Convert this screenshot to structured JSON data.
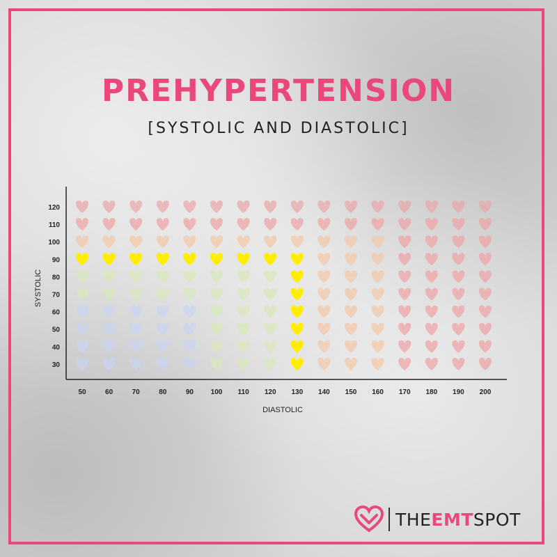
{
  "header": {
    "title": "PREHYPERTENSION",
    "subtitle": "[SYSTOLIC AND DIASTOLIC]"
  },
  "logo": {
    "part1": "THE",
    "part2": "EMT",
    "part3": "SPOT",
    "accent_color": "#e8497a",
    "icon": "heart-outline-icon"
  },
  "chart_data": {
    "type": "scatter",
    "marker": "heart",
    "xlabel": "DIASTOLIC",
    "ylabel": "SYSTOLIC",
    "x_ticks": [
      50,
      60,
      70,
      80,
      90,
      100,
      110,
      120,
      130,
      140,
      150,
      160,
      170,
      180,
      190,
      200
    ],
    "y_ticks": [
      30,
      40,
      50,
      60,
      70,
      80,
      90,
      100,
      110,
      120
    ],
    "highlight_color": "#ffee00",
    "highlighted_points": [
      [
        50,
        90
      ],
      [
        60,
        90
      ],
      [
        70,
        90
      ],
      [
        80,
        90
      ],
      [
        90,
        90
      ],
      [
        100,
        90
      ],
      [
        110,
        90
      ],
      [
        120,
        90
      ],
      [
        130,
        90
      ],
      [
        130,
        80
      ],
      [
        130,
        70
      ],
      [
        130,
        60
      ],
      [
        130,
        50
      ],
      [
        130,
        40
      ],
      [
        130,
        30
      ]
    ],
    "faded_color_rows": [
      {
        "y": 120,
        "colors": [
          "#e8a8a8",
          "#e8a8a8",
          "#e8a8a8",
          "#e8a8a8",
          "#e8a8a8",
          "#e8a8a8",
          "#e8a8a8",
          "#e8a8a8",
          "#e8a8a8",
          "#e8a8a8",
          "#e8a8a8",
          "#e8a8a8",
          "#e8a8a8",
          "#e8a8a8",
          "#e8a8a8",
          "#e8a8a8"
        ]
      },
      {
        "y": 110,
        "colors": [
          "#f0a4a4",
          "#f0a4a4",
          "#f0a4a4",
          "#f0a4a4",
          "#f0a4a4",
          "#f0a4a4",
          "#f0a4a4",
          "#f0a4a4",
          "#f0a4a4",
          "#f0a4a4",
          "#f0a4a4",
          "#f0a4a4",
          "#f0a4a4",
          "#f0a4a4",
          "#f0a4a4",
          "#f0a4a4"
        ]
      },
      {
        "y": 100,
        "colors": [
          "#f2c8a8",
          "#f2c8a8",
          "#f2c8a8",
          "#f2c8a8",
          "#f2c8a8",
          "#f2c8a8",
          "#f2c8a8",
          "#f2c8a8",
          "#f2c8a8",
          "#f2c8a8",
          "#f2c8a8",
          "#f2c8a8",
          "#f0a4a4",
          "#f0a4a4",
          "#f0a4a4",
          "#f0a4a4"
        ]
      },
      {
        "y": 90,
        "colors": [
          "#ffee00",
          "#ffee00",
          "#ffee00",
          "#ffee00",
          "#ffee00",
          "#ffee00",
          "#ffee00",
          "#ffee00",
          "#ffee00",
          "#f2c8a8",
          "#f2c8a8",
          "#f2c8a8",
          "#f0a4a4",
          "#f0a4a4",
          "#f0a4a4",
          "#f0a4a4"
        ]
      },
      {
        "y": 80,
        "colors": [
          "#d8e8b8",
          "#d8e8b8",
          "#d8e8b8",
          "#d8e8b8",
          "#d8e8b8",
          "#d8e8b8",
          "#d8e8b8",
          "#d8e8b8",
          "#ffee00",
          "#f2c8a8",
          "#f2c8a8",
          "#f2c8a8",
          "#f0a4a4",
          "#f0a4a4",
          "#f0a4a4",
          "#f0a4a4"
        ]
      },
      {
        "y": 70,
        "colors": [
          "#d8e8b8",
          "#d8e8b8",
          "#d8e8b8",
          "#d8e8b8",
          "#d8e8b8",
          "#d8e8b8",
          "#d8e8b8",
          "#d8e8b8",
          "#ffee00",
          "#f2c8a8",
          "#f2c8a8",
          "#f2c8a8",
          "#f0a4a4",
          "#f0a4a4",
          "#f0a4a4",
          "#f0a4a4"
        ]
      },
      {
        "y": 60,
        "colors": [
          "#c8d4f0",
          "#c8d4f0",
          "#c8d4f0",
          "#c8d4f0",
          "#c8d4f0",
          "#d8e8b8",
          "#d8e8b8",
          "#d8e8b8",
          "#ffee00",
          "#f2c8a8",
          "#f2c8a8",
          "#f2c8a8",
          "#f0a4a4",
          "#f0a4a4",
          "#f0a4a4",
          "#f0a4a4"
        ]
      },
      {
        "y": 50,
        "colors": [
          "#c8d4f0",
          "#c8d4f0",
          "#c8d4f0",
          "#c8d4f0",
          "#c8d4f0",
          "#d8e8b8",
          "#d8e8b8",
          "#d8e8b8",
          "#ffee00",
          "#f2c8a8",
          "#f2c8a8",
          "#f2c8a8",
          "#f0a4a4",
          "#f0a4a4",
          "#f0a4a4",
          "#f0a4a4"
        ]
      },
      {
        "y": 40,
        "colors": [
          "#c8d4f0",
          "#c8d4f0",
          "#c8d4f0",
          "#c8d4f0",
          "#c8d4f0",
          "#d8e8b8",
          "#d8e8b8",
          "#d8e8b8",
          "#ffee00",
          "#f2c8a8",
          "#f2c8a8",
          "#f2c8a8",
          "#f0a4a4",
          "#f0a4a4",
          "#f0a4a4",
          "#f0a4a4"
        ]
      },
      {
        "y": 30,
        "colors": [
          "#c8d4f0",
          "#c8d4f0",
          "#c8d4f0",
          "#c8d4f0",
          "#c8d4f0",
          "#d8e8b8",
          "#d8e8b8",
          "#d8e8b8",
          "#ffee00",
          "#f2c8a8",
          "#f2c8a8",
          "#f2c8a8",
          "#f0a4a4",
          "#f0a4a4",
          "#f0a4a4",
          "#f0a4a4"
        ]
      }
    ],
    "grid": false,
    "legend": "none"
  }
}
